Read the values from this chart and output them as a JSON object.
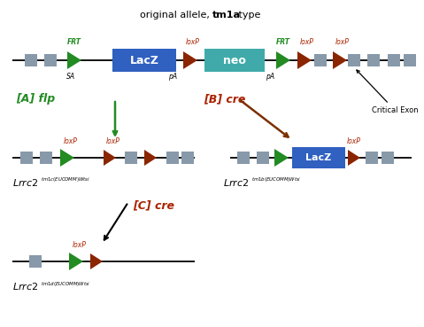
{
  "bg_color": "#ffffff",
  "green": "#228B22",
  "dark_red": "#8B2500",
  "red_text": "#AA2200",
  "blue": "#3060C0",
  "teal": "#40AAAA",
  "gray": "#8899AA",
  "arrow_green": "#228B22",
  "arrow_brown": "#7B3000",
  "black": "#000000",
  "title_normal": "original allele, ",
  "title_bold": "tm1a",
  "title_end": " type"
}
